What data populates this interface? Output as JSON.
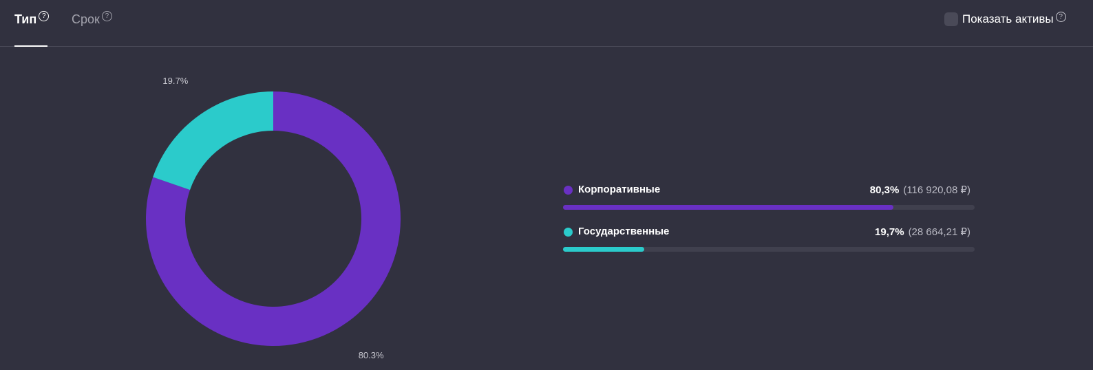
{
  "tabs": [
    {
      "label": "Тип",
      "help": "?",
      "active": true
    },
    {
      "label": "Срок",
      "help": "?",
      "active": false
    }
  ],
  "show_assets": {
    "label": "Показать активы",
    "help": "?",
    "checked": false
  },
  "chart_data": {
    "type": "pie",
    "donut": true,
    "slices": [
      {
        "name": "Корпоративные",
        "value": 80.3,
        "label": "80.3%",
        "color": "#6930c3"
      },
      {
        "name": "Государственные",
        "value": 19.7,
        "label": "19.7%",
        "color": "#2bcbcb"
      }
    ]
  },
  "legend": [
    {
      "name": "Корпоративные",
      "percent": "80,3%",
      "amount": "(116 920,08 ₽)",
      "fraction": 0.803,
      "color": "#6930c3"
    },
    {
      "name": "Государственные",
      "percent": "19,7%",
      "amount": "(28 664,21 ₽)",
      "fraction": 0.197,
      "color": "#2bcbcb"
    }
  ]
}
